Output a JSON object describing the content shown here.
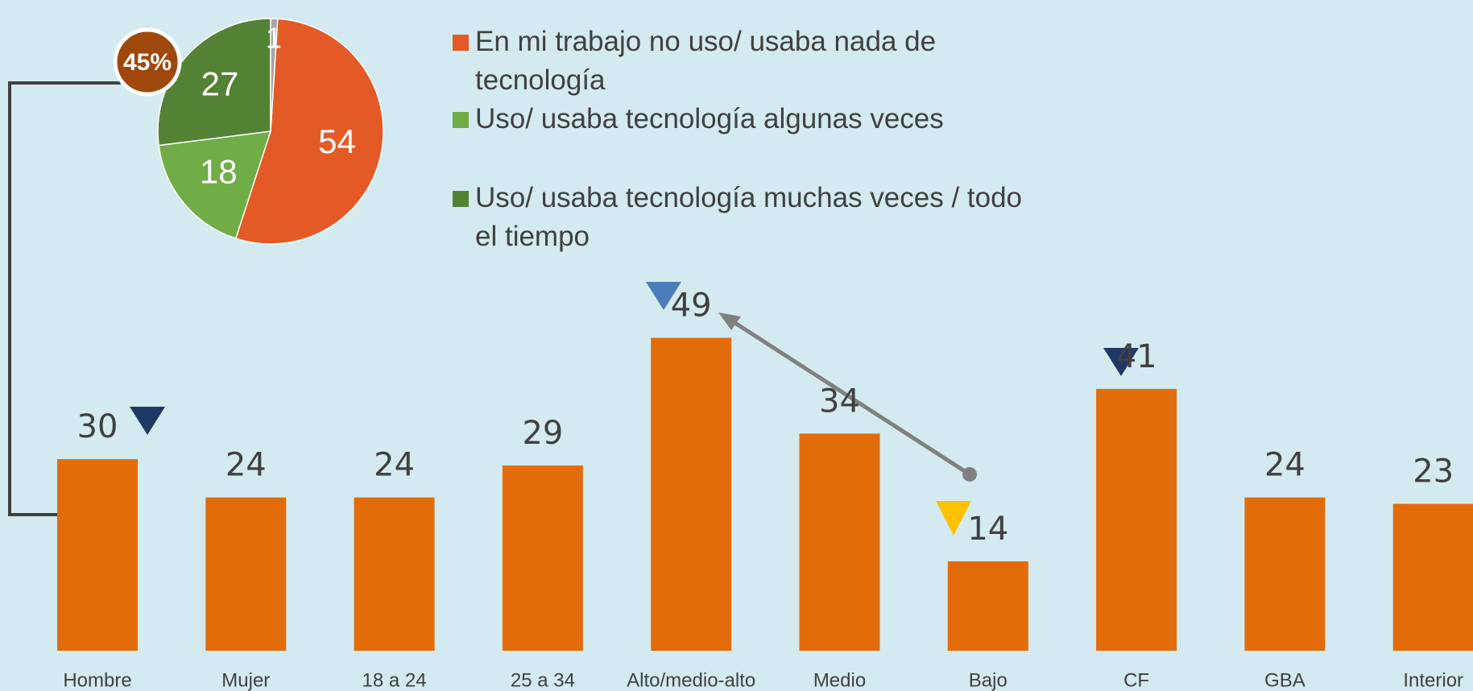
{
  "chart_data": [
    {
      "type": "pie",
      "categories": [
        "En mi trabajo no uso/ usaba nada de tecnología",
        "Uso/ usaba tecnología algunas veces",
        "Uso/ usaba tecnología muchas veces / todo el tiempo",
        null
      ],
      "values": [
        54,
        18,
        27,
        1
      ],
      "colors": [
        "#e35a26",
        "#70ad47",
        "#548235",
        "#a6a6a6"
      ],
      "annotations": [
        "45%"
      ]
    },
    {
      "type": "bar",
      "categories": [
        "Hombre",
        "Mujer",
        "18 a 24",
        "25 a 34",
        "Alto/medio-alto",
        "Medio",
        "Bajo",
        "CF",
        "GBA",
        "Interior"
      ],
      "values": [
        30,
        24,
        24,
        29,
        49,
        34,
        14,
        41,
        24,
        23
      ],
      "color": "#e36c0a"
    }
  ]
}
